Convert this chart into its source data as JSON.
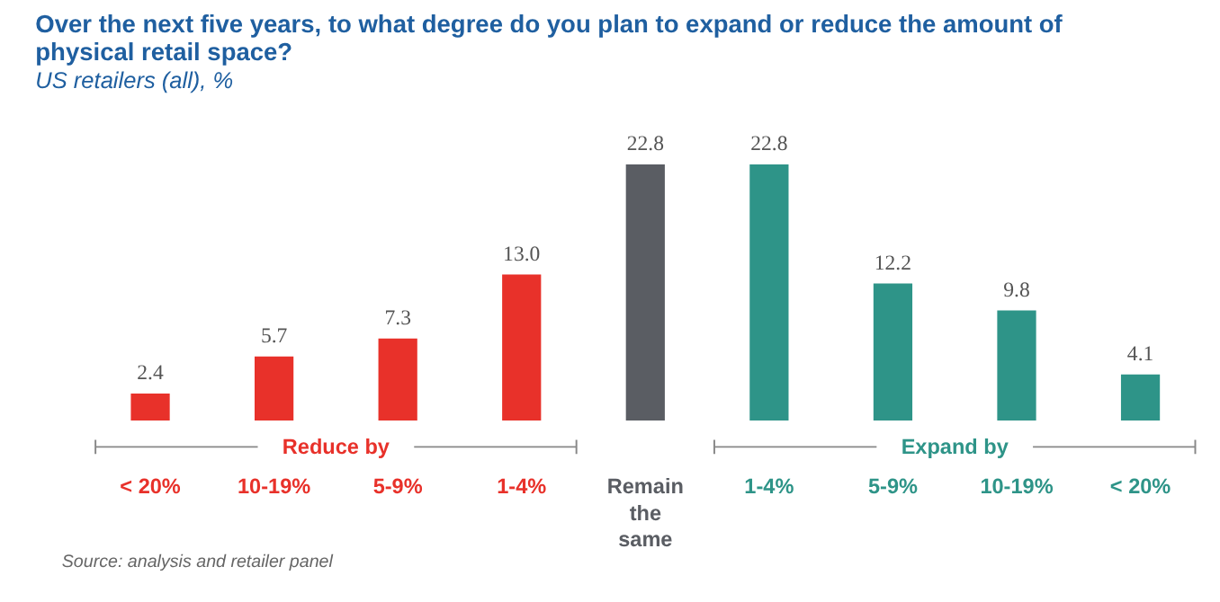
{
  "chart_data": {
    "type": "bar",
    "title": "Over the next five years, to what degree do you plan to expand or reduce the amount of physical retail space?",
    "subtitle": "US retailers (all), %",
    "categories": [
      "< 20%",
      "10-19%",
      "5-9%",
      "1-4%",
      "Remain the same",
      "1-4%",
      "5-9%",
      "10-19%",
      "< 20%"
    ],
    "values": [
      2.4,
      5.7,
      7.3,
      13.0,
      22.8,
      22.8,
      12.2,
      9.8,
      4.1
    ],
    "colors": [
      "#e8312a",
      "#e8312a",
      "#e8312a",
      "#e8312a",
      "#5a5d63",
      "#2e9488",
      "#2e9488",
      "#2e9488",
      "#2e9488"
    ],
    "value_labels": [
      "2.4",
      "5.7",
      "7.3",
      "13.0",
      "22.8",
      "22.8",
      "12.2",
      "9.8",
      "4.1"
    ],
    "annotations": [
      "Reduce by",
      "Expand by",
      "Source: analysis and retailer panel"
    ]
  }
}
